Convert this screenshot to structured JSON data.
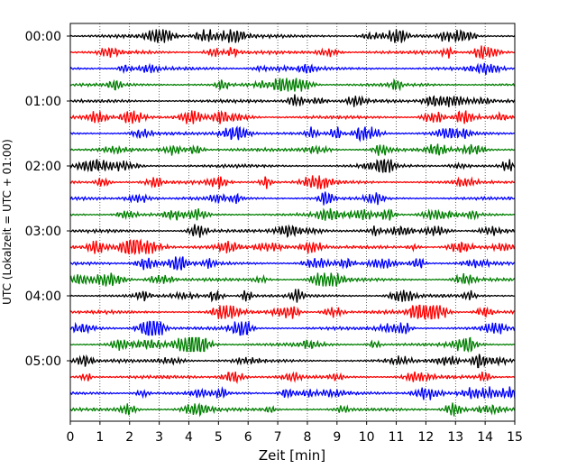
{
  "chart_data": {
    "type": "line",
    "title": "",
    "xlabel": "Zeit  [min]",
    "ylabel": "UTC (Lokalzeit = UTC + 01:00)",
    "xlim": [
      0,
      15
    ],
    "x_ticks": [
      0,
      1,
      2,
      3,
      4,
      5,
      6,
      7,
      8,
      9,
      10,
      11,
      12,
      13,
      14,
      15
    ],
    "x_tick_labels": [
      "0",
      "1",
      "2",
      "3",
      "4",
      "5",
      "6",
      "7",
      "8",
      "9",
      "10",
      "11",
      "12",
      "13",
      "14",
      "15"
    ],
    "y_tick_labels": [
      "00:00",
      "01:00",
      "02:00",
      "03:00",
      "04:00",
      "05:00"
    ],
    "grid": true,
    "trace_count": 24,
    "color_cycle": [
      "#000000",
      "#ff0000",
      "#0000ff",
      "#008000"
    ]
  }
}
